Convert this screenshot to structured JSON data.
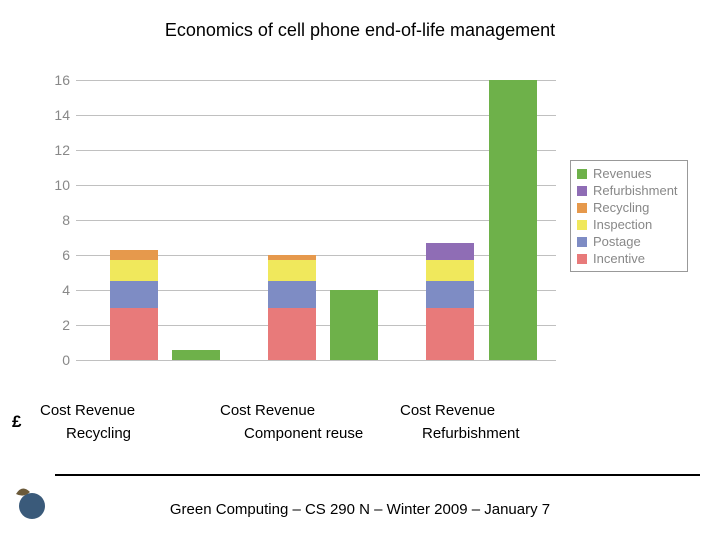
{
  "title": "Economics of cell phone end-of-life management",
  "footer": "Green Computing – CS 290 N – Winter 2009 – January 7",
  "currency_symbol": "£",
  "chart": {
    "type": "stacked-bar",
    "ylim": [
      0,
      16
    ],
    "ytick_step": 2,
    "yticks": [
      0,
      2,
      4,
      6,
      8,
      10,
      12,
      14,
      16
    ],
    "grid_color": "#c0c0c0",
    "background_color": "#ffffff",
    "tick_label_color": "#888888",
    "tick_fontsize": 14,
    "series": [
      {
        "key": "revenues",
        "label": "Revenues",
        "color": "#6eb14a"
      },
      {
        "key": "refurbishment",
        "label": "Refurbishment",
        "color": "#8f6db5"
      },
      {
        "key": "recycling",
        "label": "Recycling",
        "color": "#e6994c"
      },
      {
        "key": "inspection",
        "label": "Inspection",
        "color": "#f0e85c"
      },
      {
        "key": "postage",
        "label": "Postage",
        "color": "#7e8cc4"
      },
      {
        "key": "incentive",
        "label": "Incentive",
        "color": "#e87a7a"
      }
    ],
    "groups": [
      {
        "label": "Recycling",
        "pair_label": "Cost   Revenue"
      },
      {
        "label": "Component reuse",
        "pair_label": "Cost   Revenue"
      },
      {
        "label": "Refurbishment",
        "pair_label": "Cost   Revenue"
      }
    ],
    "bars": [
      {
        "x_pct": 7,
        "stack": [
          {
            "series": "incentive",
            "value": 3.0
          },
          {
            "series": "postage",
            "value": 1.5
          },
          {
            "series": "inspection",
            "value": 1.2
          },
          {
            "series": "recycling",
            "value": 0.6
          }
        ]
      },
      {
        "x_pct": 20,
        "stack": [
          {
            "series": "revenues",
            "value": 0.6
          }
        ]
      },
      {
        "x_pct": 40,
        "stack": [
          {
            "series": "incentive",
            "value": 3.0
          },
          {
            "series": "postage",
            "value": 1.5
          },
          {
            "series": "inspection",
            "value": 1.2
          },
          {
            "series": "recycling",
            "value": 0.3
          }
        ]
      },
      {
        "x_pct": 53,
        "stack": [
          {
            "series": "revenues",
            "value": 4.0
          }
        ]
      },
      {
        "x_pct": 73,
        "stack": [
          {
            "series": "incentive",
            "value": 3.0
          },
          {
            "series": "postage",
            "value": 1.5
          },
          {
            "series": "inspection",
            "value": 1.2
          },
          {
            "series": "refurbishment",
            "value": 1.0
          }
        ]
      },
      {
        "x_pct": 86,
        "stack": [
          {
            "series": "revenues",
            "value": 16.0
          }
        ]
      }
    ],
    "bar_width_pct": 10
  },
  "logo": {
    "leaf_color": "#6b5a3a",
    "circle_color": "#3a5a7a"
  }
}
